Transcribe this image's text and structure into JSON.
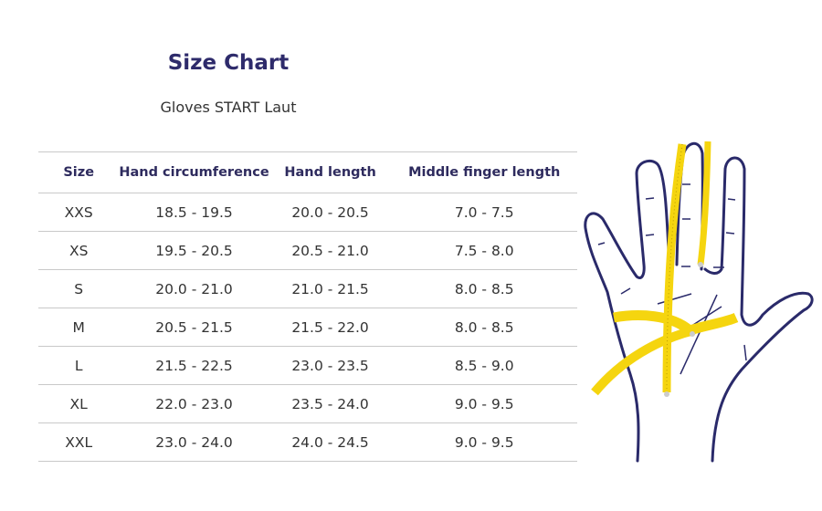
{
  "header": {
    "title": "Size Chart",
    "subtitle": "Gloves START Laut"
  },
  "table": {
    "columns": [
      "Size",
      "Hand circumference",
      "Hand length",
      "Middle finger length"
    ],
    "rows": [
      [
        "XXS",
        "18.5 - 19.5",
        "20.0 - 20.5",
        "7.0 - 7.5"
      ],
      [
        "XS",
        "19.5 - 20.5",
        "20.5 - 21.0",
        "7.5 - 8.0"
      ],
      [
        "S",
        "20.0 - 21.0",
        "21.0 - 21.5",
        "8.0 - 8.5"
      ],
      [
        "M",
        "20.5 - 21.5",
        "21.5 - 22.0",
        "8.0 - 8.5"
      ],
      [
        "L",
        "21.5 - 22.5",
        "23.0 - 23.5",
        "8.5 - 9.0"
      ],
      [
        "XL",
        "22.0 - 23.0",
        "23.5 - 24.0",
        "9.0 - 9.5"
      ],
      [
        "XXL",
        "23.0 - 24.0",
        "24.0 - 24.5",
        "9.0 - 9.5"
      ]
    ]
  },
  "illustration": {
    "icon": "hand-with-measuring-tape-icon",
    "outline_color": "#2a2a6a",
    "tape_color": "#f5d50f"
  }
}
